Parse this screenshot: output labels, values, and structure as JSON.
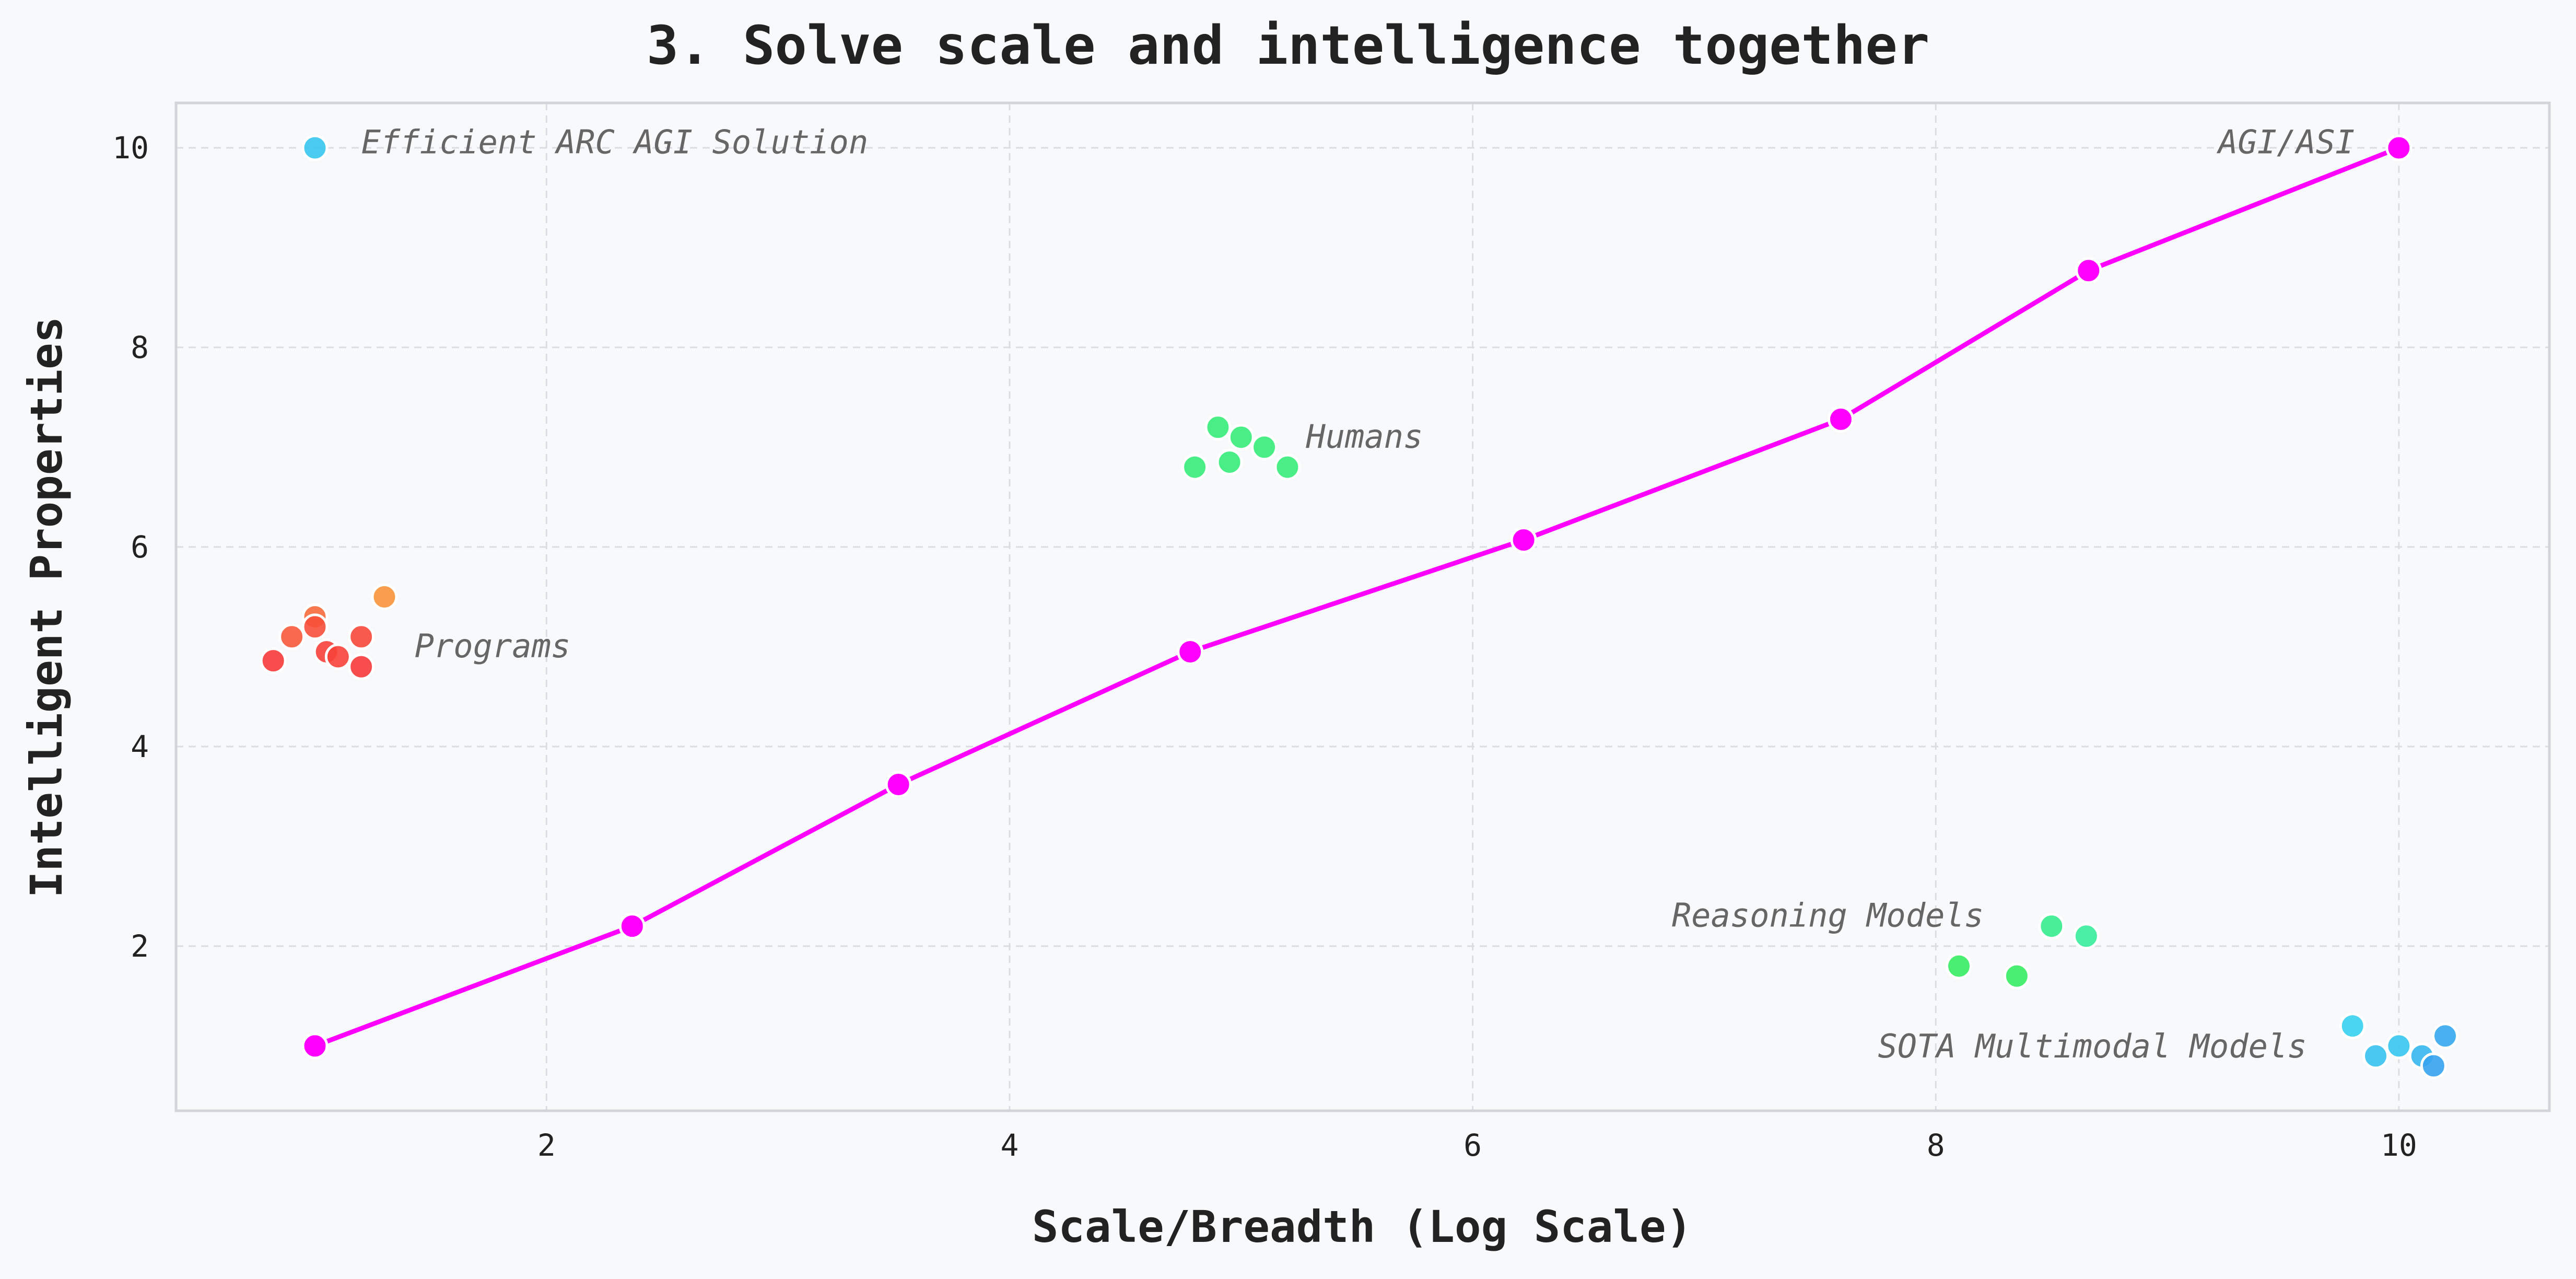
{
  "chart_data": {
    "type": "scatter",
    "title": "3. Solve scale and intelligence together",
    "xlabel": "Scale/Breadth (Log Scale)",
    "ylabel": "Intelligent Properties",
    "xlim": [
      0.4,
      10.65
    ],
    "ylim": [
      0.35,
      10.45
    ],
    "xticks": [
      2,
      4,
      6,
      8,
      10
    ],
    "yticks": [
      2,
      4,
      6,
      8,
      10
    ],
    "grid": true,
    "line_series": {
      "color": "#ff00ff",
      "points": [
        [
          1.0,
          1.0
        ],
        [
          2.37,
          2.2
        ],
        [
          3.52,
          3.62
        ],
        [
          4.78,
          4.95
        ],
        [
          6.22,
          6.07
        ],
        [
          7.59,
          7.28
        ],
        [
          8.66,
          8.77
        ],
        [
          10.0,
          10.0
        ]
      ]
    },
    "clusters": [
      {
        "label": "Programs",
        "label_at": [
          1.43,
          5.0
        ],
        "points": [
          {
            "x": 0.82,
            "y": 4.86,
            "color": "#f73a3a"
          },
          {
            "x": 0.9,
            "y": 5.1,
            "color": "#f75a3a"
          },
          {
            "x": 1.0,
            "y": 5.3,
            "color": "#f76a3a"
          },
          {
            "x": 1.0,
            "y": 5.2,
            "color": "#f7503a"
          },
          {
            "x": 1.05,
            "y": 4.95,
            "color": "#f7403a"
          },
          {
            "x": 1.1,
            "y": 4.9,
            "color": "#f7443a"
          },
          {
            "x": 1.2,
            "y": 5.1,
            "color": "#f7483a"
          },
          {
            "x": 1.2,
            "y": 4.8,
            "color": "#f73a3a"
          },
          {
            "x": 1.3,
            "y": 5.5,
            "color": "#f7943a"
          }
        ]
      },
      {
        "label": "Humans",
        "label_at": [
          5.28,
          7.1
        ],
        "points": [
          {
            "x": 4.8,
            "y": 6.8,
            "color": "#36ec7a"
          },
          {
            "x": 4.9,
            "y": 7.2,
            "color": "#36ec7a"
          },
          {
            "x": 4.95,
            "y": 6.85,
            "color": "#36ec7a"
          },
          {
            "x": 5.0,
            "y": 7.1,
            "color": "#36ec7a"
          },
          {
            "x": 5.1,
            "y": 7.0,
            "color": "#36ec7a"
          },
          {
            "x": 5.2,
            "y": 6.8,
            "color": "#36ec7a"
          }
        ]
      },
      {
        "label": "Reasoning Models",
        "label_at": [
          6.86,
          2.3
        ],
        "points": [
          {
            "x": 8.1,
            "y": 1.8,
            "color": "#36ec62"
          },
          {
            "x": 8.35,
            "y": 1.7,
            "color": "#36ec62"
          },
          {
            "x": 8.5,
            "y": 2.2,
            "color": "#36ec8e"
          },
          {
            "x": 8.65,
            "y": 2.1,
            "color": "#36ec9a"
          }
        ]
      },
      {
        "label": "SOTA Multimodal Models",
        "label_at": [
          7.75,
          0.99
        ],
        "points": [
          {
            "x": 9.8,
            "y": 1.2,
            "color": "#36d2ef"
          },
          {
            "x": 9.9,
            "y": 0.9,
            "color": "#36c2ef"
          },
          {
            "x": 10.0,
            "y": 1.0,
            "color": "#36c6ef"
          },
          {
            "x": 10.1,
            "y": 0.9,
            "color": "#36b6ef"
          },
          {
            "x": 10.15,
            "y": 0.8,
            "color": "#36a2ef"
          },
          {
            "x": 10.2,
            "y": 1.1,
            "color": "#36a8ef"
          }
        ]
      },
      {
        "label": "Efficient ARC AGI Solution",
        "label_at": [
          1.2,
          10.05
        ],
        "points": [
          {
            "x": 1.0,
            "y": 10.0,
            "color": "#36c6ef"
          }
        ]
      }
    ],
    "endpoint_label": {
      "text": "AGI/ASI",
      "at": [
        9.22,
        10.05
      ]
    }
  }
}
